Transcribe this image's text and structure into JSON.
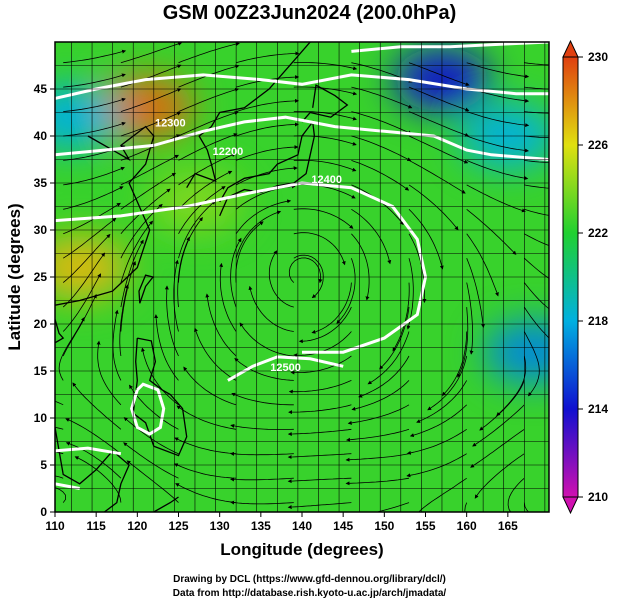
{
  "page": {
    "title": "GSM 00Z23Jun2024 (200.0hPa)",
    "credit_line1": "Drawing by DCL (https://www.gfd-dennou.org/library/dcl/)",
    "credit_line2": "Data from http://database.rish.kyoto-u.ac.jp/arch/jmadata/"
  },
  "chart_data": {
    "type": "heatmap",
    "title": "GSM 00Z23Jun2024 (200.0hPa)",
    "xlabel": "Longitude (degrees)",
    "ylabel": "Latitude  (degrees)",
    "xlim": [
      110,
      170
    ],
    "ylim": [
      0,
      50
    ],
    "x_ticks": [
      110,
      115,
      120,
      125,
      130,
      135,
      140,
      145,
      150,
      155,
      160,
      165
    ],
    "y_ticks": [
      0,
      5,
      10,
      15,
      20,
      25,
      30,
      35,
      40,
      45
    ],
    "grid": true,
    "colorbar": {
      "min": 210,
      "max": 230,
      "ticks": [
        210,
        214,
        218,
        222,
        226,
        230
      ],
      "colors": [
        "#d010b0",
        "#1010d0",
        "#00b0e0",
        "#20d030",
        "#e0e010",
        "#e04010"
      ]
    },
    "warm_regions": [
      {
        "lon": 121,
        "lat": 43,
        "value": 229
      },
      {
        "lon": 113,
        "lat": 26,
        "value": 227
      },
      {
        "lon": 127,
        "lat": 33,
        "value": 224
      }
    ],
    "cold_regions": [
      {
        "lon": 157,
        "lat": 46,
        "value": 214
      },
      {
        "lon": 165,
        "lat": 40,
        "value": 218
      },
      {
        "lon": 168,
        "lat": 17,
        "value": 217
      },
      {
        "lon": 112,
        "lat": 42,
        "value": 218
      }
    ],
    "contour_labels": [
      {
        "text": "12500",
        "lon": 138,
        "lat": 15
      },
      {
        "text": "12300",
        "lon": 124,
        "lat": 41
      },
      {
        "text": "12200",
        "lon": 131,
        "lat": 38
      },
      {
        "text": "12400",
        "lon": 143,
        "lat": 35
      }
    ]
  }
}
